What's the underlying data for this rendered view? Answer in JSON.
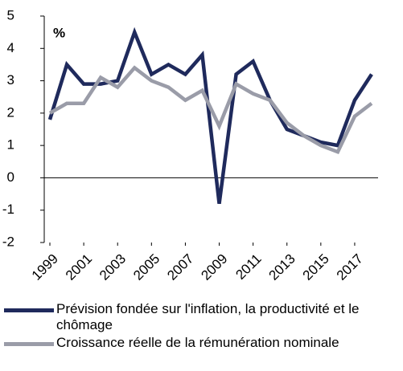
{
  "chart_data": {
    "type": "line",
    "y_label": "%",
    "x": [
      1999,
      2000,
      2001,
      2002,
      2003,
      2004,
      2005,
      2006,
      2007,
      2008,
      2009,
      2010,
      2011,
      2012,
      2013,
      2014,
      2015,
      2016,
      2017,
      2018
    ],
    "series": [
      {
        "name": "Prévision fondée sur l'inflation, la productivité et le chômage",
        "color": "#1f2a5c",
        "values": [
          1.8,
          3.5,
          2.9,
          2.9,
          3.0,
          4.5,
          3.2,
          3.5,
          3.2,
          3.8,
          -0.8,
          3.2,
          3.6,
          2.4,
          1.5,
          1.3,
          1.1,
          1.0,
          2.4,
          3.2
        ]
      },
      {
        "name": "Croissance réelle de la rémunération nominale",
        "color": "#9a9ca8",
        "values": [
          2.0,
          2.3,
          2.3,
          3.1,
          2.8,
          3.4,
          3.0,
          2.8,
          2.4,
          2.7,
          1.6,
          2.9,
          2.6,
          2.4,
          1.7,
          1.3,
          1.0,
          0.8,
          1.9,
          2.3
        ]
      }
    ],
    "xlim": [
      1999,
      2018
    ],
    "xticks": [
      1999,
      2001,
      2003,
      2005,
      2007,
      2009,
      2011,
      2013,
      2015,
      2017
    ],
    "ylim": [
      -2,
      5
    ],
    "yticks": [
      -2,
      -1,
      0,
      1,
      2,
      3,
      4,
      5
    ]
  }
}
